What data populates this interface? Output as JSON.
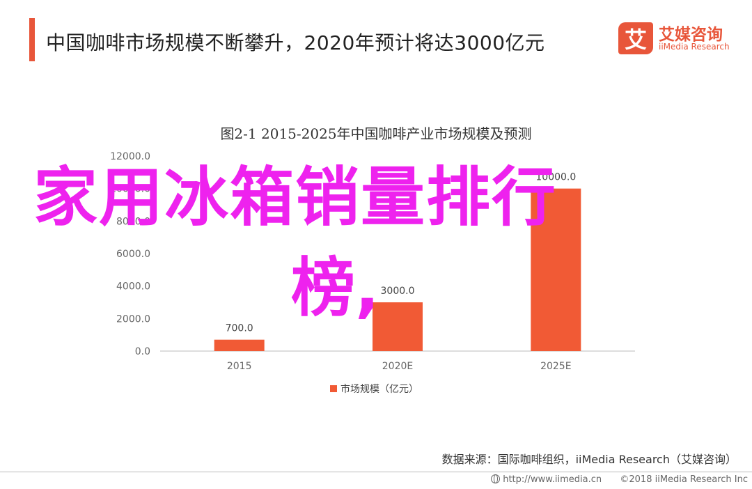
{
  "header": {
    "title": "中国咖啡市场规模不断攀升，2020年预计将达3000亿元",
    "accent_color": "#e8563a"
  },
  "logo": {
    "mark": "艾",
    "cn": "艾媒咨询",
    "en": "iiMedia Research"
  },
  "chart_data": {
    "type": "bar",
    "title": "图2-1 2015-2025年中国咖啡产业市场规模及预测",
    "categories": [
      "2015",
      "2020E",
      "2025E"
    ],
    "series": [
      {
        "name": "市场规模（亿元）",
        "values": [
          700.0,
          3000.0,
          10000.0
        ],
        "color": "#f15a35"
      }
    ],
    "data_labels": [
      "700.0",
      "3000.0",
      "10000.0"
    ],
    "ylim": [
      0,
      12000
    ],
    "yticks": [
      "0.0",
      "2000.0",
      "4000.0",
      "6000.0",
      "8000.0",
      "10000.0",
      "12000.0"
    ],
    "grid": false,
    "legend": "bottom"
  },
  "overlay": {
    "line1": "家用冰箱销量排行",
    "line2": "榜,",
    "color": "#ee22ee"
  },
  "source": "数据来源：国际咖啡组织，iiMedia Research（艾媒咨询）",
  "footer": {
    "url": "http://www.iimedia.cn",
    "copyright": "©2018  iiMedia Research  Inc"
  }
}
